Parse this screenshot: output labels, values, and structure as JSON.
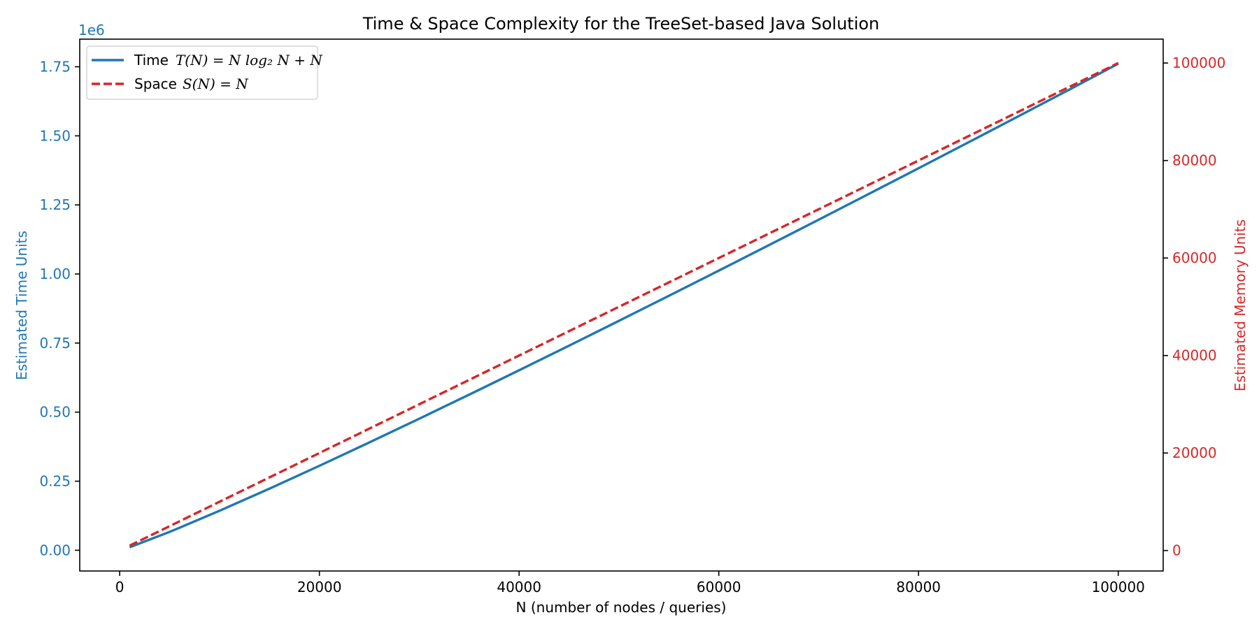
{
  "chart_data": {
    "type": "line",
    "title": "Time & Space Complexity for the TreeSet-based Java Solution",
    "xlabel": "N  (number of nodes / queries)",
    "ylabel_left": "Estimated Time Units",
    "ylabel_right": "Estimated Memory Units",
    "left_axis_multiplier_label": "1e6",
    "x": [
      1000,
      5000,
      10000,
      15000,
      20000,
      25000,
      30000,
      35000,
      40000,
      45000,
      50000,
      55000,
      60000,
      65000,
      70000,
      75000,
      80000,
      85000,
      90000,
      95000,
      100000
    ],
    "xlim": [
      -4000,
      104500
    ],
    "xticks": [
      0,
      20000,
      40000,
      60000,
      80000,
      100000
    ],
    "xtick_labels": [
      "0",
      "20000",
      "40000",
      "60000",
      "80000",
      "100000"
    ],
    "ylim_left": [
      -0.075,
      1.85
    ],
    "yticks_left": [
      0.0,
      0.25,
      0.5,
      0.75,
      1.0,
      1.25,
      1.5,
      1.75
    ],
    "ytick_labels_left": [
      "0.00",
      "0.25",
      "0.50",
      "0.75",
      "1.00",
      "1.25",
      "1.50",
      "1.75"
    ],
    "ylim_right": [
      -4200,
      104900
    ],
    "yticks_right": [
      0,
      20000,
      40000,
      60000,
      80000,
      100000
    ],
    "ytick_labels_right": [
      "0",
      "20000",
      "40000",
      "60000",
      "80000",
      "100000"
    ],
    "series": [
      {
        "name": "Time",
        "formula": "T(N) = N log2 N + N",
        "axis": "left",
        "color": "#1f77b4",
        "style": "solid",
        "values": [
          0.011,
          0.0664,
          0.1429,
          0.2231,
          0.3057,
          0.3903,
          0.4762,
          0.5633,
          0.6515,
          0.7405,
          0.8304,
          0.921,
          1.0122,
          1.104,
          1.1964,
          1.2893,
          1.3826,
          1.4765,
          1.5707,
          1.6654,
          1.761
        ]
      },
      {
        "name": "Space",
        "formula": "S(N) = N",
        "axis": "right",
        "color": "#d62728",
        "style": "dashed",
        "values": [
          1000,
          5000,
          10000,
          15000,
          20000,
          25000,
          30000,
          35000,
          40000,
          45000,
          50000,
          55000,
          60000,
          65000,
          70000,
          75000,
          80000,
          85000,
          90000,
          95000,
          100000
        ]
      }
    ],
    "legend": {
      "position": "top-left",
      "entries": [
        {
          "label": "Time",
          "math": "T(N) = N log₂ N + N",
          "color": "#1f77b4",
          "style": "solid"
        },
        {
          "label": "Space",
          "math": "S(N) = N",
          "color": "#d62728",
          "style": "dashed"
        }
      ]
    },
    "grid": false,
    "colors": {
      "left_axis": "#1f77b4",
      "right_axis": "#d62728",
      "frame": "#000000"
    }
  }
}
